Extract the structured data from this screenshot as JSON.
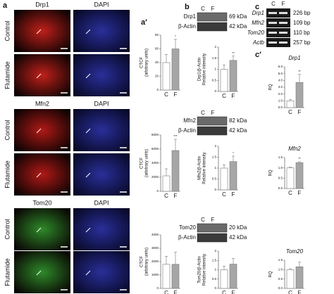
{
  "panel_labels": [
    "a",
    "a′",
    "b",
    "c",
    "c′"
  ],
  "images": {
    "rows": [
      "Control",
      "Flutamide"
    ],
    "groups": [
      {
        "stain": "Drp1",
        "counterstain": "DAPI",
        "color": "#c0201a"
      },
      {
        "stain": "Mfn2",
        "counterstain": "DAPI",
        "color": "#b01a16"
      },
      {
        "stain": "Tom20",
        "counterstain": "DAPI",
        "color": "#2f8a2a"
      }
    ]
  },
  "blots": [
    {
      "conditions": [
        "C",
        "F"
      ],
      "bands": [
        {
          "name": "Drp1",
          "size": "69 kDa"
        },
        {
          "name": "β-Actin",
          "size": "42 kDa"
        }
      ]
    },
    {
      "conditions": [
        "C",
        "F"
      ],
      "bands": [
        {
          "name": "Mfn2",
          "size": "82 kDa"
        },
        {
          "name": "β-Actin",
          "size": "42 kDa"
        }
      ]
    },
    {
      "conditions": [
        "C",
        "F"
      ],
      "bands": [
        {
          "name": "Tom20",
          "size": "20 kDa"
        },
        {
          "name": "β-Actin",
          "size": "42 kDa"
        }
      ]
    }
  ],
  "gel": {
    "conditions": [
      "C",
      "F"
    ],
    "bands": [
      {
        "name": "Drp1",
        "size": "226 bp"
      },
      {
        "name": "Mfn2",
        "size": "109 bp"
      },
      {
        "name": "Tom20",
        "size": "110 bp"
      },
      {
        "name": "Actb",
        "size": "257 bp"
      }
    ]
  },
  "chart_data": [
    {
      "type": "bar",
      "y_label": [
        "CTCF",
        "(arbitrary units)"
      ],
      "categories": [
        "C",
        "F"
      ],
      "values": [
        40,
        60
      ],
      "errors": [
        12,
        14
      ],
      "colors": [
        "#ffffff",
        "#a6a6a6"
      ],
      "ylim": [
        0,
        80
      ],
      "yticks": [
        0,
        20,
        40,
        60,
        80
      ],
      "annotation": "*"
    },
    {
      "type": "bar",
      "y_label": [
        "CTCF",
        "(arbitrary units)"
      ],
      "categories": [
        "C",
        "F"
      ],
      "values": [
        2200,
        5800
      ],
      "errors": [
        1000,
        1600
      ],
      "colors": [
        "#ffffff",
        "#a6a6a6"
      ],
      "ylim": [
        0,
        8000
      ],
      "yticks": [
        0,
        2000,
        4000,
        6000,
        8000
      ],
      "annotation": "***"
    },
    {
      "type": "bar",
      "y_label": [
        "CTCF",
        "(arbitrary units)"
      ],
      "categories": [
        "C",
        "F"
      ],
      "values": [
        1800,
        1800
      ],
      "errors": [
        600,
        900
      ],
      "colors": [
        "#ffffff",
        "#a6a6a6"
      ],
      "ylim": [
        0,
        4000
      ],
      "yticks": [
        0,
        1000,
        2000,
        3000,
        4000
      ]
    },
    {
      "type": "bar",
      "y_label": [
        "Drp1/β-Actin",
        "Relative intensity"
      ],
      "categories": [
        "C",
        "F"
      ],
      "values": [
        1,
        1.4
      ],
      "errors": [
        0.2,
        0.2
      ],
      "colors": [
        "#ffffff",
        "#a6a6a6"
      ],
      "ylim": [
        0,
        2
      ],
      "yticks": [
        0,
        0.5,
        1,
        1.5,
        2
      ],
      "annotation": "**"
    },
    {
      "type": "bar",
      "y_label": [
        "Mfn2/β-Actin",
        "Relative intensity"
      ],
      "categories": [
        "C",
        "F"
      ],
      "values": [
        1,
        1.3
      ],
      "errors": [
        0.15,
        0.25
      ],
      "colors": [
        "#ffffff",
        "#a6a6a6"
      ],
      "ylim": [
        0,
        2
      ],
      "yticks": [
        0,
        0.5,
        1,
        1.5,
        2
      ],
      "annotation": "*"
    },
    {
      "type": "bar",
      "y_label": [
        "Tom20/β-Actin",
        "Relative intensity"
      ],
      "categories": [
        "C",
        "F"
      ],
      "values": [
        1,
        1.3
      ],
      "errors": [
        0.2,
        0.3
      ],
      "colors": [
        "#ffffff",
        "#a6a6a6"
      ],
      "ylim": [
        0,
        2
      ],
      "yticks": [
        0,
        0.5,
        1,
        1.5,
        2
      ]
    },
    {
      "type": "bar",
      "title": "Drp1",
      "y_label": [
        "RQ"
      ],
      "categories": [
        "C",
        "F"
      ],
      "values": [
        1,
        3.7
      ],
      "errors": [
        0.2,
        1.2
      ],
      "colors": [
        "#ffffff",
        "#a6a6a6"
      ],
      "ylim": [
        0,
        6
      ],
      "yticks": [
        {
          "value": 0,
          "label": "0.0"
        },
        {
          "value": 1,
          "label": "1.0"
        },
        {
          "value": 2,
          "label": "2.0"
        },
        {
          "value": 3,
          "label": "3.0"
        },
        {
          "value": 4,
          "label": "4.0"
        },
        {
          "value": 5,
          "label": "5.0"
        },
        {
          "value": 6,
          "label": "6.0"
        }
      ],
      "annotation": "**"
    },
    {
      "type": "bar",
      "title": "Mfn2",
      "y_label": [
        "RQ"
      ],
      "categories": [
        "C",
        "F"
      ],
      "values": [
        1,
        1.25
      ],
      "errors": [
        0.03,
        0.05
      ],
      "colors": [
        "#ffffff",
        "#a6a6a6"
      ],
      "ylim": [
        0,
        1.5
      ],
      "yticks": [
        {
          "value": 0,
          "label": "0.0"
        },
        0.5,
        {
          "value": 1,
          "label": "1.0"
        },
        1.5
      ],
      "annotation": "**"
    },
    {
      "type": "bar",
      "title": "Tom20",
      "y_label": [
        "RQ"
      ],
      "categories": [
        "C",
        "F"
      ],
      "values": [
        1,
        1.15
      ],
      "errors": [
        0.05,
        0.25
      ],
      "colors": [
        "#ffffff",
        "#a6a6a6"
      ],
      "ylim": [
        0,
        1.5
      ],
      "yticks": [
        {
          "value": 0,
          "label": "0.0"
        },
        0.5,
        {
          "value": 1,
          "label": "1.0"
        },
        1.5
      ]
    }
  ]
}
